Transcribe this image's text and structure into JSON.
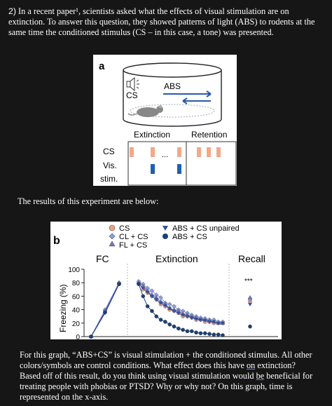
{
  "intro": {
    "number": "2)",
    "text": "In a recent paper¹, scientists asked what the effects of visual stimulation are on extinction. To answer this question, they showed patterns of light (ABS) to rodents at the same time the conditioned stimulus (CS – in this case, a tone) was presented."
  },
  "figure_a": {
    "panel_label": "a",
    "cylinder_label_abs": "ABS",
    "cylinder_label_cs": "CS",
    "phase_extinction": "Extinction",
    "phase_retention": "Retention",
    "row_cs": "CS",
    "row_vis": "Vis.",
    "row_stim": "stim.",
    "ellipsis": "...",
    "colors": {
      "cs_block": "#f2a98a",
      "vis_block": "#1f5fb0"
    }
  },
  "results_text": "The results of this experiment are below:",
  "figure_b": {
    "panel_label": "b",
    "legend": [
      "CS",
      "CL + CS",
      "FL + CS",
      "ABS + CS unpaired",
      "ABS + CS"
    ],
    "sections": [
      "FC",
      "Extinction",
      "Recall"
    ],
    "significance": "***",
    "y_axis_label": "Freezing (%)",
    "y_ticks": [
      "0",
      "20",
      "40",
      "60",
      "80",
      "100"
    ],
    "colors": {
      "cs": "#f0a080",
      "cl_cs": "#8aa0e0",
      "fl_cs": "#7a70c8",
      "abs_unpaired": "#3050a0",
      "abs_cs": "#1a3f7a"
    }
  },
  "chart_data": {
    "type": "line",
    "ylabel": "Freezing (%)",
    "ylim": [
      0,
      100
    ],
    "sections": [
      "FC",
      "Extinction",
      "Recall"
    ],
    "series": [
      {
        "name": "CS",
        "fc": [
          0,
          38,
          78
        ],
        "extinction": [
          80,
          70,
          65,
          60,
          55,
          48,
          45,
          40,
          38,
          35,
          30,
          30,
          28,
          25,
          25,
          22,
          22,
          20,
          20,
          20
        ],
        "recall": 52
      },
      {
        "name": "CL + CS",
        "fc": [
          0,
          40,
          80
        ],
        "extinction": [
          82,
          78,
          72,
          68,
          62,
          58,
          50,
          48,
          45,
          40,
          38,
          35,
          32,
          30,
          28,
          27,
          25,
          25,
          22,
          22
        ],
        "recall": 55
      },
      {
        "name": "FL + CS",
        "fc": [
          0,
          38,
          80
        ],
        "extinction": [
          80,
          75,
          68,
          62,
          58,
          52,
          48,
          42,
          40,
          38,
          34,
          32,
          30,
          28,
          26,
          25,
          24,
          22,
          20,
          20
        ],
        "recall": 58
      },
      {
        "name": "ABS + CS unpaired",
        "fc": [
          0,
          35,
          78
        ],
        "extinction": [
          78,
          72,
          66,
          60,
          55,
          50,
          46,
          42,
          38,
          35,
          32,
          30,
          28,
          26,
          25,
          24,
          22,
          22,
          20,
          20
        ],
        "recall": 48
      },
      {
        "name": "ABS + CS",
        "fc": [
          0,
          36,
          78
        ],
        "extinction": [
          78,
          60,
          45,
          38,
          30,
          25,
          22,
          18,
          15,
          12,
          10,
          8,
          8,
          6,
          5,
          5,
          4,
          3,
          3,
          2
        ],
        "recall": 15
      }
    ]
  },
  "question_text": {
    "part1": "For this graph, “ABS+CS” is visual stimulation + the conditioned stimulus. All other colors/symbols are control conditions. What effect does this have ",
    "underline1": "on",
    "part2": " extinction? Based off of this result, do you think using visual stimulation would ",
    "underline2": "be",
    "part3": " beneficial for treating people with phobias or PTSD? Why or why not? On this graph, time is represented on the x-axis."
  }
}
